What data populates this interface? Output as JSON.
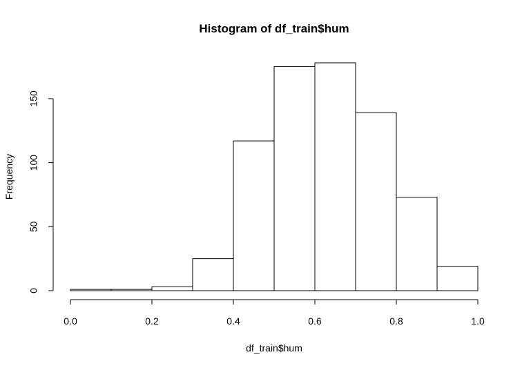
{
  "chart_data": {
    "type": "bar",
    "title": "Histogram of df_train$hum",
    "xlabel": "df_train$hum",
    "ylabel": "Frequency",
    "bins": [
      {
        "start": 0.0,
        "end": 0.1,
        "count": 1
      },
      {
        "start": 0.1,
        "end": 0.2,
        "count": 1
      },
      {
        "start": 0.2,
        "end": 0.3,
        "count": 3
      },
      {
        "start": 0.3,
        "end": 0.4,
        "count": 25
      },
      {
        "start": 0.4,
        "end": 0.5,
        "count": 117
      },
      {
        "start": 0.5,
        "end": 0.6,
        "count": 175
      },
      {
        "start": 0.6,
        "end": 0.7,
        "count": 178
      },
      {
        "start": 0.7,
        "end": 0.8,
        "count": 139
      },
      {
        "start": 0.8,
        "end": 0.9,
        "count": 73
      },
      {
        "start": 0.9,
        "end": 1.0,
        "count": 19
      }
    ],
    "x_ticks": [
      0.0,
      0.2,
      0.4,
      0.6,
      0.8,
      1.0
    ],
    "x_tick_labels": [
      "0.0",
      "0.2",
      "0.4",
      "0.6",
      "0.8",
      "1.0"
    ],
    "y_ticks": [
      0,
      50,
      100,
      150
    ],
    "y_tick_labels": [
      "0",
      "50",
      "100",
      "150"
    ],
    "xlim": [
      0,
      1
    ],
    "ylim": [
      0,
      178
    ],
    "grid": false,
    "bar_fill": "#ffffff",
    "bar_stroke": "#000000"
  }
}
